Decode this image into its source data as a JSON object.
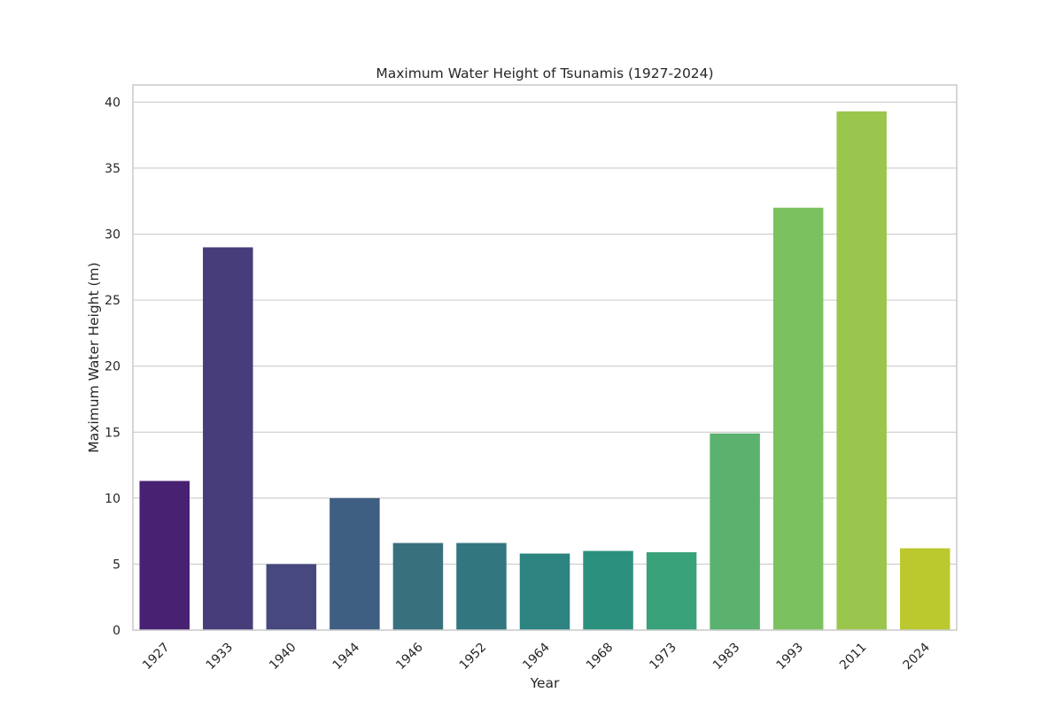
{
  "chart_data": {
    "type": "bar",
    "title": "Maximum Water Height of Tsunamis (1927-2024)",
    "xlabel": "Year",
    "ylabel": "Maximum Water Height (m)",
    "categories": [
      "1927",
      "1933",
      "1940",
      "1944",
      "1946",
      "1952",
      "1964",
      "1968",
      "1973",
      "1983",
      "1993",
      "2011",
      "2024"
    ],
    "values": [
      11.3,
      29.0,
      5.0,
      10.0,
      6.6,
      6.6,
      5.8,
      6.0,
      5.9,
      14.9,
      32.0,
      39.3,
      6.2
    ],
    "colors": [
      "#482173",
      "#473d7b",
      "#46487e",
      "#3e5f82",
      "#39707e",
      "#32777f",
      "#2c8380",
      "#2b917e",
      "#3aa27a",
      "#5ab26e",
      "#7cc160",
      "#9bc64d",
      "#bbc82e"
    ],
    "ylim": [
      0,
      41.3
    ],
    "yticks": [
      0,
      5,
      10,
      15,
      20,
      25,
      30,
      35,
      40
    ],
    "grid": "horizontal",
    "legend": "none"
  }
}
